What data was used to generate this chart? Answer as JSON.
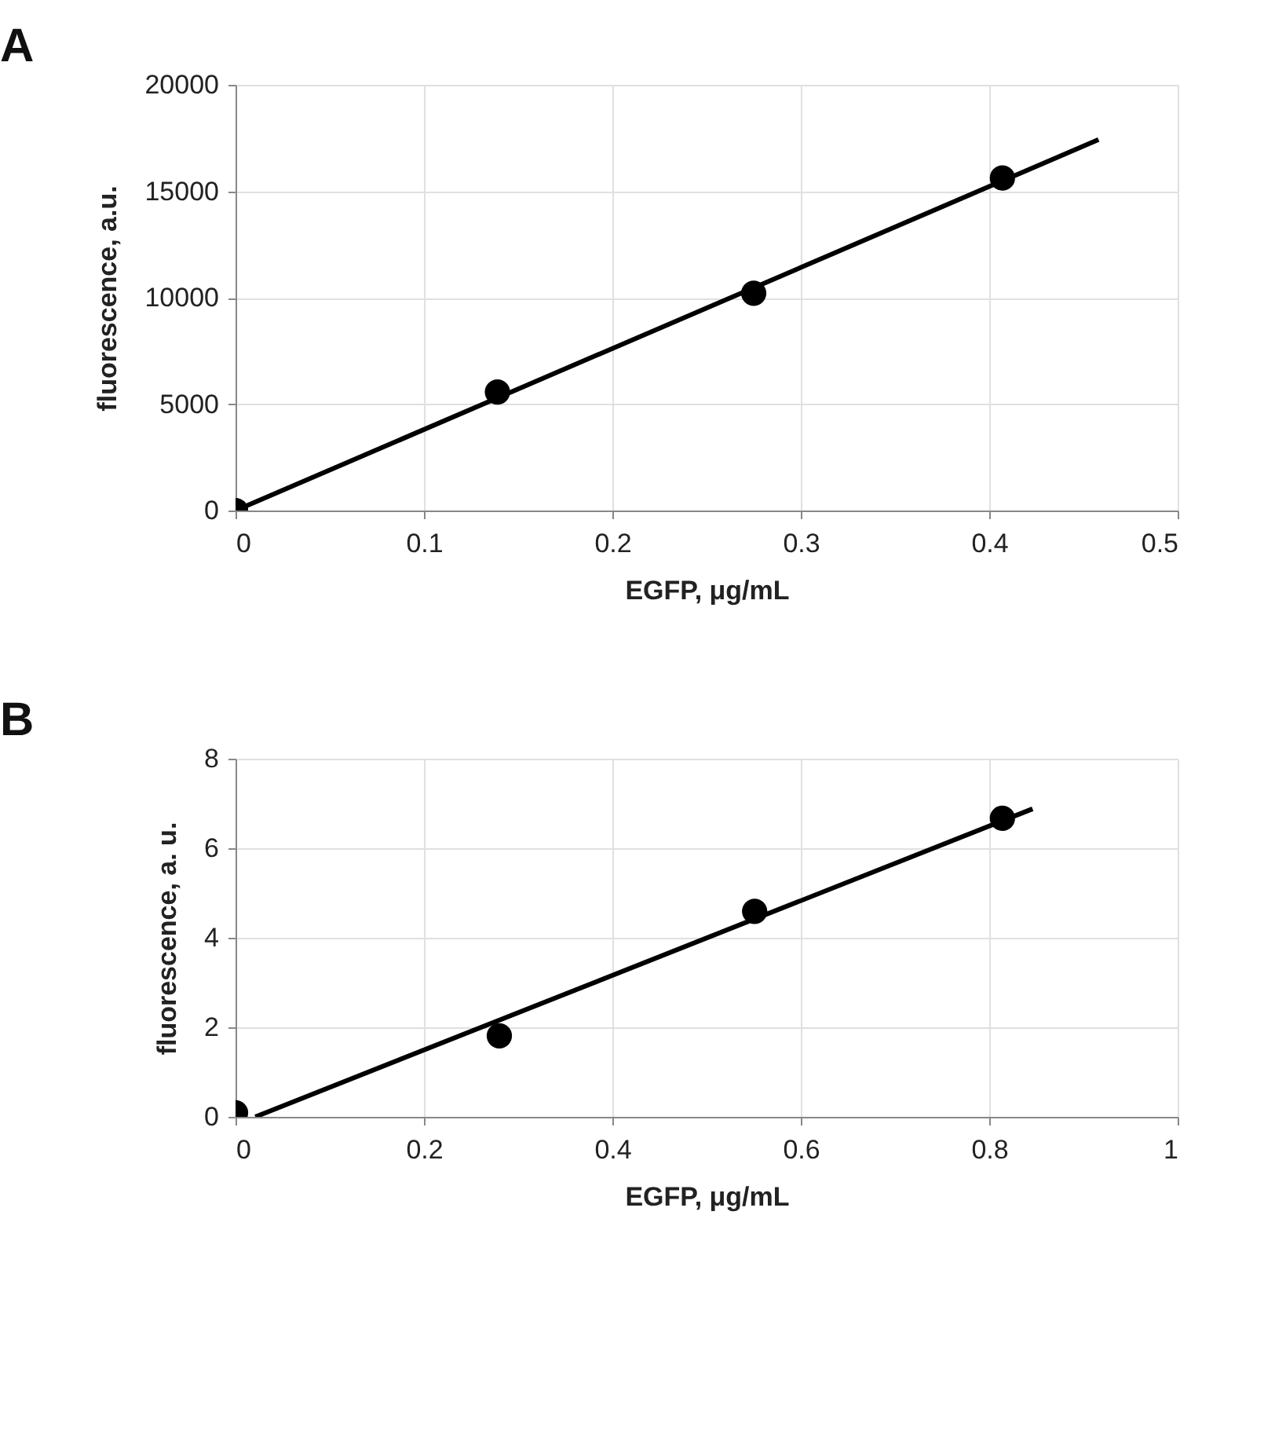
{
  "chart_data": [
    {
      "type": "scatter",
      "title": "A",
      "xlabel": "EGFP, μg/mL",
      "ylabel": "fluorescence, a.u.",
      "xlim": [
        0,
        0.5
      ],
      "xticks": [
        0,
        0.1,
        0.2,
        0.3,
        0.4,
        0.5
      ],
      "ylim": [
        0,
        20000
      ],
      "yticks": [
        0,
        5000,
        10000,
        15000,
        20000
      ],
      "grid": true,
      "series": [
        {
          "color": "#000000",
          "marker": "circle",
          "x": [
            0,
            0.139,
            0.275,
            0.407
          ],
          "values": [
            0,
            5570,
            10210,
            15620
          ]
        },
        {
          "type": "line",
          "color": "#000000",
          "x": [
            0,
            0.458
          ],
          "values": [
            0,
            17430
          ]
        }
      ]
    },
    {
      "type": "scatter",
      "title": "B",
      "xlabel": "EGFP, μg/mL",
      "ylabel": "fluorescence, a. u.",
      "xlim": [
        0,
        1
      ],
      "xticks": [
        0,
        0.2,
        0.4,
        0.6,
        0.8,
        1
      ],
      "ylim": [
        0,
        8
      ],
      "yticks": [
        0,
        2,
        4,
        6,
        8
      ],
      "grid": true,
      "series": [
        {
          "color": "#000000",
          "marker": "circle",
          "x": [
            0,
            0.28,
            0.551,
            0.814
          ],
          "values": [
            0.09,
            1.81,
            4.59,
            6.67
          ]
        },
        {
          "type": "line",
          "color": "#000000",
          "x": [
            0.021,
            0.846
          ],
          "values": [
            0,
            6.88
          ]
        }
      ]
    }
  ]
}
